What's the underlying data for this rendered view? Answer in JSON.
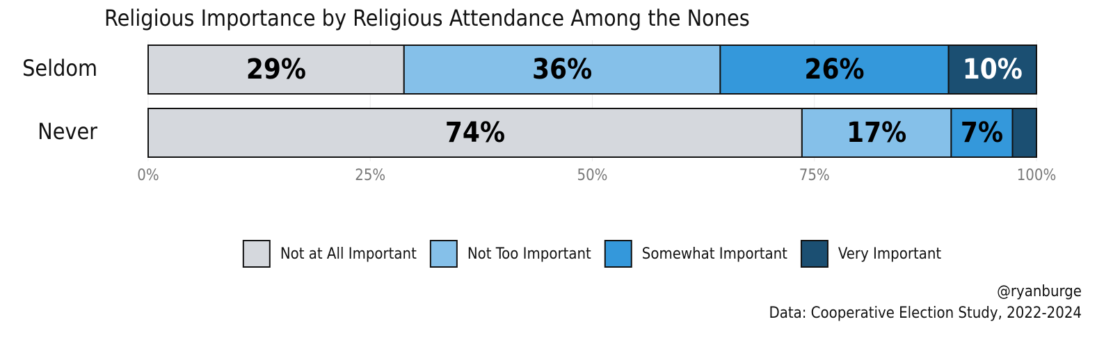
{
  "chart_data": {
    "type": "stacked-bar-horizontal",
    "title": "Religious Importance by Religious Attendance Among the Nones",
    "categories": [
      "Seldom",
      "Never"
    ],
    "series": [
      {
        "name": "Not at All Important",
        "color": "#d5d8dd",
        "label_color": "#000000",
        "values": [
          28.8,
          73.6
        ],
        "value_labels": [
          "29%",
          "74%"
        ]
      },
      {
        "name": "Not Too Important",
        "color": "#85c0e9",
        "label_color": "#000000",
        "values": [
          35.6,
          16.8
        ],
        "value_labels": [
          "36%",
          "17%"
        ]
      },
      {
        "name": "Somewhat Important",
        "color": "#3498db",
        "label_color": "#000000",
        "values": [
          25.7,
          6.9
        ],
        "value_labels": [
          "26%",
          "7%"
        ]
      },
      {
        "name": "Very Important",
        "color": "#1b4f72",
        "label_color": "#ffffff",
        "values": [
          9.9,
          2.7
        ],
        "value_labels": [
          "10%",
          null
        ]
      }
    ],
    "xlim": [
      0,
      100
    ],
    "xticks": [
      {
        "value": 0,
        "label": "0%"
      },
      {
        "value": 25,
        "label": "25%"
      },
      {
        "value": 50,
        "label": "50%"
      },
      {
        "value": 75,
        "label": "75%"
      },
      {
        "value": 100,
        "label": "100%"
      }
    ],
    "grid": true,
    "legend": "bottom",
    "caption": [
      "@ryanburge",
      "Data: Cooperative Election Study, 2022-2024"
    ]
  }
}
